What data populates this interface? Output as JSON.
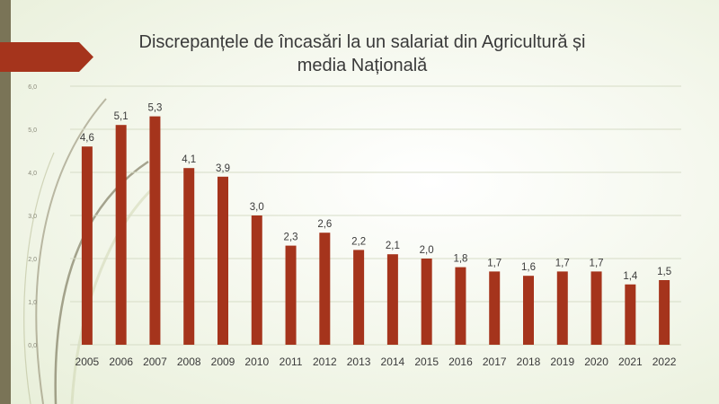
{
  "slide": {
    "title_line1": "Discrepanțele de încasări la un salariat din Agricultură și",
    "title_line2": "media Națională"
  },
  "chart_data": {
    "type": "bar",
    "title": "Discrepanțele de încasări la un salariat din Agricultură și media Națională",
    "xlabel": "",
    "ylabel": "",
    "categories": [
      "2005",
      "2006",
      "2007",
      "2008",
      "2009",
      "2010",
      "2011",
      "2012",
      "2013",
      "2014",
      "2015",
      "2016",
      "2017",
      "2018",
      "2019",
      "2020",
      "2021",
      "2022"
    ],
    "values": [
      4.6,
      5.1,
      5.3,
      4.1,
      3.9,
      3.0,
      2.3,
      2.6,
      2.2,
      2.1,
      2.0,
      1.8,
      1.7,
      1.6,
      1.7,
      1.7,
      1.4,
      1.5
    ],
    "data_labels": [
      "4,6",
      "5,1",
      "5,3",
      "4,1",
      "3,9",
      "3,0",
      "2,3",
      "2,6",
      "2,2",
      "2,1",
      "2,0",
      "1,8",
      "1,7",
      "1,6",
      "1,7",
      "1,7",
      "1,4",
      "1,5"
    ],
    "ylim": [
      0,
      6
    ],
    "yticks": [
      "0,0",
      "1,0",
      "2,0",
      "3,0",
      "4,0",
      "5,0",
      "6,0"
    ],
    "grid": true,
    "legend": "none",
    "colors": {
      "bar": "#a5341c",
      "grid": "#d6dcc6",
      "tick_text": "#8a8a7a",
      "label_text": "#3a3a3a"
    }
  }
}
